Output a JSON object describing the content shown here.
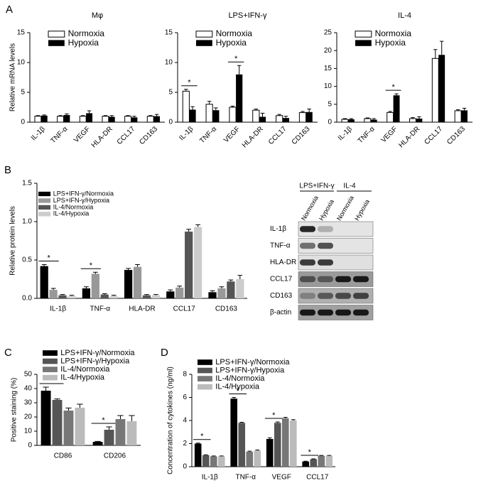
{
  "panel_labels": [
    "A",
    "B",
    "C",
    "D"
  ],
  "chart_data": [
    {
      "type": "bar",
      "title": "Mφ",
      "y_label": "Relative mRNA levels",
      "categories": [
        "IL-1β",
        "TNF-α",
        "VEGF",
        "HLA-DR",
        "CCL17",
        "CD163"
      ],
      "series": [
        {
          "name": "Normoxia",
          "color": "#ffffff",
          "values": [
            1.0,
            1.0,
            1.0,
            1.0,
            1.0,
            1.0
          ],
          "errors": [
            0.1,
            0.1,
            0.1,
            0.1,
            0.1,
            0.1
          ]
        },
        {
          "name": "Hypoxia",
          "color": "#000000",
          "values": [
            1.1,
            1.2,
            1.5,
            0.9,
            0.8,
            1.0
          ],
          "errors": [
            0.1,
            0.2,
            0.4,
            0.2,
            0.2,
            0.3
          ]
        }
      ],
      "ylim": [
        0,
        15
      ],
      "yticks": [
        0,
        5,
        10,
        15
      ],
      "legend": "upper left"
    },
    {
      "type": "bar",
      "title": "LPS+IFN-γ",
      "categories": [
        "IL-1β",
        "TNF-α",
        "VEGF",
        "HLA-DR",
        "CCL17",
        "CD163"
      ],
      "series": [
        {
          "name": "Normoxia",
          "color": "#ffffff",
          "values": [
            5.2,
            3.0,
            2.5,
            2.0,
            1.1,
            1.6
          ],
          "errors": [
            0.3,
            0.5,
            0.2,
            0.2,
            0.2,
            0.2
          ]
        },
        {
          "name": "Hypoxia",
          "color": "#000000",
          "values": [
            2.1,
            2.0,
            8.0,
            0.9,
            0.7,
            1.7
          ],
          "errors": [
            0.5,
            0.4,
            1.5,
            0.6,
            0.3,
            0.5
          ]
        }
      ],
      "significance": [
        "*",
        null,
        "*",
        null,
        null,
        null
      ],
      "ylim": [
        0,
        15
      ],
      "yticks": [
        0,
        5,
        10,
        15
      ],
      "legend": "upper left"
    },
    {
      "type": "bar",
      "title": "IL-4",
      "categories": [
        "IL-1β",
        "TNF-α",
        "VEGF",
        "HLA-DR",
        "CCL17",
        "CD163"
      ],
      "series": [
        {
          "name": "Normoxia",
          "color": "#ffffff",
          "values": [
            0.8,
            1.0,
            2.7,
            1.0,
            17.8,
            3.2
          ],
          "errors": [
            0.2,
            0.2,
            0.3,
            0.3,
            2.5,
            0.3
          ]
        },
        {
          "name": "Hypoxia",
          "color": "#000000",
          "values": [
            0.8,
            0.7,
            7.5,
            1.0,
            18.8,
            3.3
          ],
          "errors": [
            0.2,
            0.3,
            0.4,
            0.5,
            3.8,
            0.6
          ]
        }
      ],
      "significance": [
        null,
        null,
        "*",
        null,
        null,
        null
      ],
      "ylim": [
        0,
        25
      ],
      "yticks": [
        0,
        5,
        10,
        15,
        20,
        25
      ],
      "legend": "upper left"
    },
    {
      "type": "bar",
      "y_label": "Relative protein levels",
      "categories": [
        "IL-1β",
        "TNF-α",
        "HLA-DR",
        "CCL17",
        "CD163"
      ],
      "series": [
        {
          "name": "LPS+IFN-γ/Normoxia",
          "color": "#000000",
          "values": [
            0.42,
            0.13,
            0.37,
            0.09,
            0.08
          ],
          "errors": [
            0.02,
            0.02,
            0.02,
            0.02,
            0.02
          ]
        },
        {
          "name": "LPS+IFN-γ/Hypoxia",
          "color": "#999999",
          "values": [
            0.11,
            0.32,
            0.41,
            0.14,
            0.13
          ],
          "errors": [
            0.02,
            0.02,
            0.03,
            0.02,
            0.02
          ]
        },
        {
          "name": "IL-4/Normoxia",
          "color": "#555555",
          "values": [
            0.04,
            0.05,
            0.04,
            0.87,
            0.22
          ],
          "errors": [
            0.01,
            0.01,
            0.01,
            0.03,
            0.02
          ]
        },
        {
          "name": "IL-4/Hypoxia",
          "color": "#cccccc",
          "values": [
            0.03,
            0.03,
            0.04,
            0.93,
            0.25
          ],
          "errors": [
            0.01,
            0.01,
            0.01,
            0.03,
            0.05
          ]
        }
      ],
      "significance": [
        "*",
        "*",
        null,
        null,
        null
      ],
      "ylim": [
        0,
        1.5
      ],
      "yticks": [
        {
          "value": 0,
          "label": "0.0"
        },
        0.5,
        {
          "value": 1,
          "label": "1.0"
        },
        1.5
      ],
      "legend": "upper left"
    },
    {
      "type": "bar",
      "y_label": "Positive staining (%)",
      "categories": [
        "CD86",
        "CD206"
      ],
      "series": [
        {
          "name": "LPS+IFN-γ/Normoxia",
          "color": "#000000",
          "values": [
            38.5,
            2.5
          ],
          "errors": [
            2.5,
            0.3
          ]
        },
        {
          "name": "LPS+IFN-γ/Hypoxia",
          "color": "#555555",
          "values": [
            32,
            11
          ],
          "errors": [
            0.7,
            2
          ]
        },
        {
          "name": "IL-4/Normoxia",
          "color": "#777777",
          "values": [
            24.5,
            18.5
          ],
          "errors": [
            1.8,
            2.5
          ]
        },
        {
          "name": "IL-4/Hypoxia",
          "color": "#bbbbbb",
          "values": [
            26.5,
            17
          ],
          "errors": [
            2.5,
            4
          ]
        }
      ],
      "significance": [
        "*",
        "*"
      ],
      "ylim": [
        0,
        50
      ],
      "yticks": [
        0,
        10,
        20,
        30,
        40,
        50
      ],
      "legend": "upper left"
    },
    {
      "type": "bar",
      "y_label": "Concentration of cytokines (ng/ml)",
      "categories": [
        "IL-1β",
        "TNF-α",
        "VEGF",
        "CCL17"
      ],
      "series": [
        {
          "name": "LPS+IFN-γ/Normoxia",
          "color": "#000000",
          "values": [
            2.0,
            5.9,
            2.4,
            0.45
          ],
          "errors": [
            0.05,
            0.1,
            0.1,
            0.03
          ]
        },
        {
          "name": "LPS+IFN-γ/Hypoxia",
          "color": "#555555",
          "values": [
            1.0,
            3.8,
            3.8,
            0.65
          ],
          "errors": [
            0.03,
            0.05,
            0.08,
            0.03
          ]
        },
        {
          "name": "IL-4/Normoxia",
          "color": "#777777",
          "values": [
            0.9,
            1.3,
            4.2,
            0.95
          ],
          "errors": [
            0.03,
            0.05,
            0.08,
            0.03
          ]
        },
        {
          "name": "IL-4/Hypoxia",
          "color": "#bbbbbb",
          "values": [
            0.9,
            1.4,
            4.0,
            0.95
          ],
          "errors": [
            0.03,
            0.05,
            0.08,
            0.03
          ]
        }
      ],
      "significance": [
        "*",
        "*",
        "*",
        "*"
      ],
      "ylim": [
        0,
        8
      ],
      "yticks": [
        0,
        2,
        4,
        6,
        8
      ],
      "legend": "upper left"
    }
  ],
  "blot": {
    "groups": [
      "LPS+IFN-γ",
      "IL-4"
    ],
    "lanes": [
      "Normoxia",
      "Hypoxia",
      "Normoxia",
      "Hypoxia"
    ],
    "rows": [
      "IL-1β",
      "TNF-α",
      "HLA-DR",
      "CCL17",
      "CD163",
      "β-actin"
    ]
  }
}
